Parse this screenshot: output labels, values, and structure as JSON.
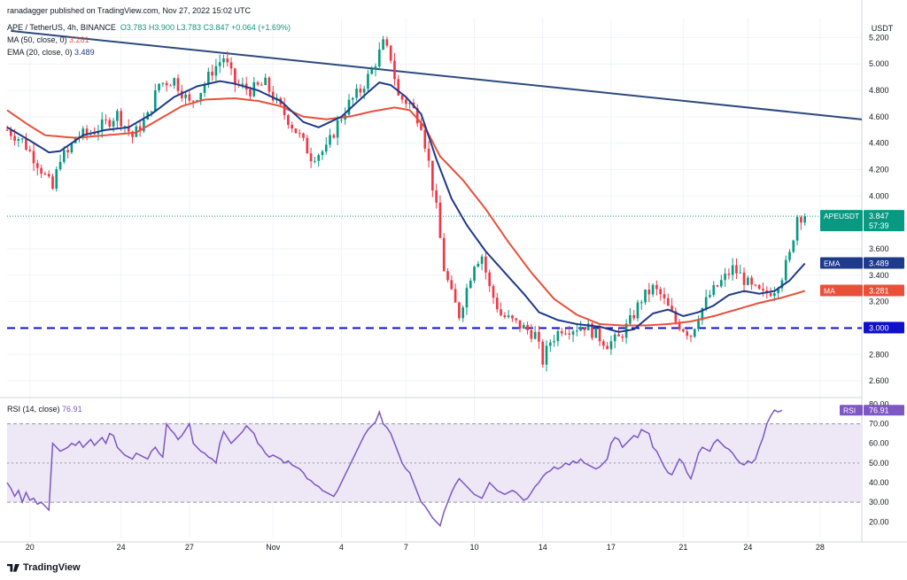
{
  "header": {
    "publisher": "ranadagger published on TradingView.com, Nov 27, 2022 15:02 UTC",
    "symbol": "APE / TetherUS, 4h, BINANCE",
    "ohlc": "O3.783 H3.900 L3.783 C3.847 +0.064 (+1.69%)",
    "ma_label": "MA (50, close, 0)",
    "ma_value": "3.281",
    "ema_label": "EMA (20, close, 0)",
    "ema_value": "3.489",
    "rsi_label": "RSI (14, close)",
    "rsi_value": "76.91"
  },
  "footer": {
    "brand": "TradingView"
  },
  "colors": {
    "up": "#089981",
    "down": "#f23645",
    "ema": "#1e3a8a",
    "ma": "#e8503a",
    "trendline": "#2b4a7e",
    "support": "#1010c8",
    "rsi": "#7e57c2",
    "rsi_band": "#ede7f6"
  },
  "chart_data": [
    {
      "type": "candlestick",
      "title": "APE / TetherUS, 4h, BINANCE",
      "y_unit": "USDT",
      "ylim": [
        2.5,
        5.35
      ],
      "y_ticks": [
        "5.200",
        "5.000",
        "4.800",
        "4.600",
        "4.400",
        "4.200",
        "4.000",
        "3.600",
        "3.400",
        "3.200",
        "2.800",
        "2.600"
      ],
      "x_ticks": [
        "20",
        "24",
        "27",
        "Nov",
        "4",
        "7",
        "10",
        "14",
        "17",
        "21",
        "24",
        "28"
      ],
      "x_tick_index": [
        6,
        30,
        48,
        70,
        88,
        105,
        123,
        141,
        159,
        178,
        195,
        214
      ],
      "last_price": 3.847,
      "price_badge": {
        "label": "APEUSDT",
        "value": "3.847",
        "countdown": "57:39"
      },
      "ema_badge": {
        "label": "EMA",
        "value": "3.489"
      },
      "ma_badge": {
        "label": "MA",
        "value": "3.281"
      },
      "support_level": {
        "value": 3.0,
        "label": "3.000"
      },
      "trendline": {
        "from": [
          1,
          5.25
        ],
        "to": [
          225,
          4.58
        ]
      },
      "ohlc_anchors": [
        [
          0,
          4.5
        ],
        [
          4,
          4.42
        ],
        [
          8,
          4.25
        ],
        [
          12,
          4.05
        ],
        [
          14,
          4.3
        ],
        [
          16,
          4.32
        ],
        [
          18,
          4.45
        ],
        [
          22,
          4.48
        ],
        [
          26,
          4.55
        ],
        [
          29,
          4.62
        ],
        [
          33,
          4.45
        ],
        [
          37,
          4.6
        ],
        [
          40,
          4.85
        ],
        [
          44,
          4.88
        ],
        [
          48,
          4.7
        ],
        [
          51,
          4.8
        ],
        [
          54,
          4.95
        ],
        [
          57,
          5.05
        ],
        [
          60,
          4.85
        ],
        [
          64,
          4.8
        ],
        [
          68,
          4.85
        ],
        [
          71,
          4.7
        ],
        [
          74,
          4.58
        ],
        [
          77,
          4.45
        ],
        [
          80,
          4.3
        ],
        [
          84,
          4.35
        ],
        [
          87,
          4.55
        ],
        [
          90,
          4.7
        ],
        [
          93,
          4.8
        ],
        [
          96,
          4.95
        ],
        [
          99,
          5.15
        ],
        [
          101,
          5.05
        ],
        [
          103,
          4.75
        ],
        [
          106,
          4.7
        ],
        [
          109,
          4.55
        ],
        [
          111,
          4.25
        ],
        [
          113,
          3.9
        ],
        [
          115,
          3.45
        ],
        [
          117,
          3.25
        ],
        [
          119,
          3.1
        ],
        [
          121,
          3.3
        ],
        [
          123,
          3.5
        ],
        [
          125,
          3.55
        ],
        [
          127,
          3.3
        ],
        [
          130,
          3.1
        ],
        [
          133,
          3.05
        ],
        [
          136,
          3.0
        ],
        [
          139,
          2.95
        ],
        [
          141,
          2.75
        ],
        [
          143,
          2.9
        ],
        [
          146,
          3.0
        ],
        [
          149,
          3.0
        ],
        [
          152,
          3.02
        ],
        [
          155,
          2.95
        ],
        [
          158,
          2.88
        ],
        [
          161,
          2.92
        ],
        [
          164,
          3.05
        ],
        [
          167,
          3.22
        ],
        [
          170,
          3.3
        ],
        [
          172,
          3.25
        ],
        [
          174,
          3.15
        ],
        [
          176,
          3.05
        ],
        [
          178,
          3.0
        ],
        [
          180,
          2.95
        ],
        [
          182,
          3.1
        ],
        [
          185,
          3.25
        ],
        [
          188,
          3.35
        ],
        [
          191,
          3.45
        ],
        [
          193,
          3.4
        ],
        [
          196,
          3.3
        ],
        [
          199,
          3.25
        ],
        [
          202,
          3.3
        ],
        [
          204,
          3.4
        ],
        [
          206,
          3.55
        ],
        [
          208,
          3.85
        ],
        [
          210,
          3.847
        ]
      ],
      "ema_anchors": [
        [
          0,
          4.52
        ],
        [
          6,
          4.42
        ],
        [
          11,
          4.33
        ],
        [
          14,
          4.34
        ],
        [
          20,
          4.46
        ],
        [
          26,
          4.5
        ],
        [
          32,
          4.52
        ],
        [
          38,
          4.62
        ],
        [
          44,
          4.75
        ],
        [
          50,
          4.83
        ],
        [
          56,
          4.87
        ],
        [
          60,
          4.85
        ],
        [
          66,
          4.8
        ],
        [
          72,
          4.72
        ],
        [
          78,
          4.56
        ],
        [
          82,
          4.52
        ],
        [
          88,
          4.6
        ],
        [
          94,
          4.76
        ],
        [
          98,
          4.86
        ],
        [
          101,
          4.84
        ],
        [
          105,
          4.75
        ],
        [
          109,
          4.62
        ],
        [
          113,
          4.28
        ],
        [
          117,
          3.98
        ],
        [
          121,
          3.78
        ],
        [
          126,
          3.58
        ],
        [
          131,
          3.42
        ],
        [
          136,
          3.26
        ],
        [
          140,
          3.12
        ],
        [
          145,
          3.06
        ],
        [
          150,
          3.03
        ],
        [
          156,
          3.01
        ],
        [
          161,
          2.97
        ],
        [
          165,
          2.99
        ],
        [
          170,
          3.11
        ],
        [
          174,
          3.14
        ],
        [
          178,
          3.09
        ],
        [
          182,
          3.12
        ],
        [
          186,
          3.17
        ],
        [
          190,
          3.25
        ],
        [
          194,
          3.28
        ],
        [
          198,
          3.26
        ],
        [
          202,
          3.28
        ],
        [
          206,
          3.36
        ],
        [
          210,
          3.489
        ]
      ],
      "ma_anchors": [
        [
          0,
          4.65
        ],
        [
          5,
          4.55
        ],
        [
          10,
          4.46
        ],
        [
          18,
          4.44
        ],
        [
          26,
          4.46
        ],
        [
          34,
          4.48
        ],
        [
          40,
          4.58
        ],
        [
          46,
          4.68
        ],
        [
          52,
          4.73
        ],
        [
          60,
          4.74
        ],
        [
          66,
          4.72
        ],
        [
          72,
          4.68
        ],
        [
          78,
          4.6
        ],
        [
          84,
          4.58
        ],
        [
          90,
          4.6
        ],
        [
          96,
          4.64
        ],
        [
          102,
          4.67
        ],
        [
          106,
          4.65
        ],
        [
          110,
          4.52
        ],
        [
          114,
          4.3
        ],
        [
          120,
          4.12
        ],
        [
          126,
          3.9
        ],
        [
          132,
          3.65
        ],
        [
          138,
          3.42
        ],
        [
          144,
          3.22
        ],
        [
          150,
          3.1
        ],
        [
          156,
          3.03
        ],
        [
          162,
          3.02
        ],
        [
          168,
          3.02
        ],
        [
          174,
          3.03
        ],
        [
          180,
          3.05
        ],
        [
          186,
          3.09
        ],
        [
          192,
          3.14
        ],
        [
          198,
          3.19
        ],
        [
          204,
          3.23
        ],
        [
          210,
          3.281
        ]
      ]
    },
    {
      "type": "line",
      "title": "RSI (14, close)",
      "series_name": "RSI",
      "ylim": [
        12,
        82
      ],
      "y_ticks": [
        "80.00",
        "70.00",
        "60.00",
        "50.00",
        "40.00",
        "30.00",
        "20.00"
      ],
      "bands": [
        30,
        70
      ],
      "midline": 50,
      "last_value": 76.91,
      "values": [
        40,
        37,
        33,
        36,
        30,
        35,
        31,
        32,
        29,
        30,
        28,
        26,
        60,
        58,
        56,
        57,
        58,
        60,
        59,
        61,
        58,
        60,
        62,
        59,
        61,
        63,
        60,
        65,
        64,
        58,
        56,
        54,
        53,
        52,
        55,
        54,
        53,
        52,
        56,
        58,
        55,
        53,
        70,
        67,
        65,
        62,
        64,
        67,
        70,
        60,
        58,
        56,
        55,
        53,
        52,
        50,
        60,
        66,
        63,
        60,
        62,
        64,
        66,
        69,
        67,
        65,
        60,
        58,
        55,
        53,
        54,
        53,
        52,
        50,
        51,
        49,
        48,
        47,
        45,
        42,
        41,
        39,
        38,
        36,
        35,
        34,
        33,
        36,
        40,
        44,
        48,
        52,
        56,
        60,
        64,
        67,
        69,
        71,
        76,
        70,
        68,
        65,
        60,
        55,
        50,
        47,
        45,
        40,
        35,
        30,
        28,
        25,
        22,
        20,
        18,
        25,
        30,
        35,
        39,
        42,
        40,
        38,
        36,
        34,
        33,
        32,
        36,
        40,
        38,
        36,
        35,
        34,
        35,
        36,
        35,
        33,
        31,
        32,
        35,
        38,
        40,
        43,
        45,
        46,
        48,
        47,
        48,
        50,
        49,
        51,
        50,
        52,
        50,
        49,
        48,
        47,
        48,
        50,
        52,
        60,
        63,
        62,
        58,
        60,
        62,
        64,
        63,
        67,
        66,
        65,
        58,
        56,
        52,
        48,
        45,
        44,
        48,
        52,
        50,
        45,
        42,
        48,
        55,
        58,
        57,
        56,
        60,
        62,
        60,
        58,
        57,
        55,
        52,
        50,
        49,
        51,
        50,
        52,
        58,
        63,
        70,
        74,
        77,
        76,
        76.91
      ]
    }
  ]
}
